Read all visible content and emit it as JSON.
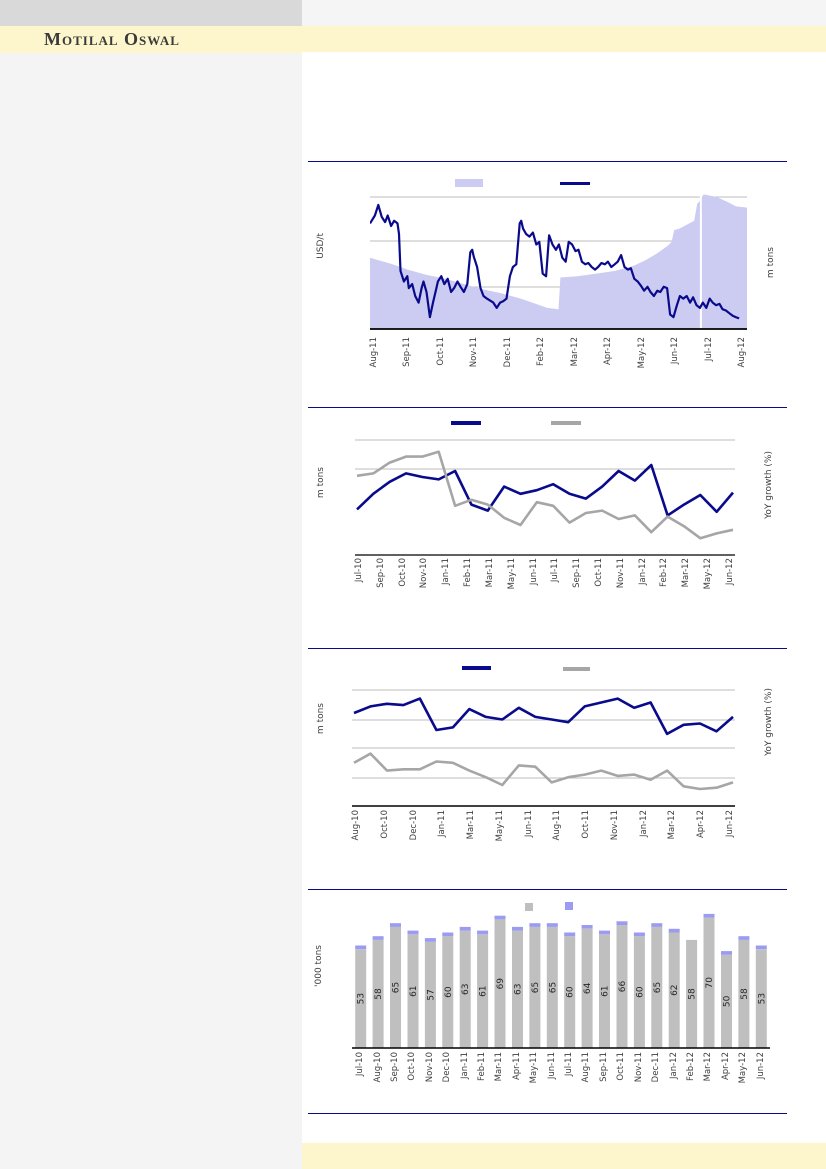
{
  "page": {
    "brand": "Motilal Oswal",
    "colors": {
      "brand_band": "#fdf6cd",
      "header_block": "#d9d9d9",
      "left_column_bg": "#f4f4f5",
      "navy": "#0a0a8c",
      "lavender_area": "#ccccf2",
      "periwinkle_cap": "#9b9bf2",
      "bar_gray": "#bfbfbf",
      "line_gray": "#a6a6a6",
      "gridline": "#bdbdbd"
    }
  },
  "chart_data": [
    {
      "type": "area",
      "subtype": "price-line-over-volume-area",
      "title": "",
      "axis_titles": {
        "left": "USD/t",
        "right": "m tons"
      },
      "y_tick_labels_visible": false,
      "note": "No numeric axis tick labels are visible; series values are normalized 0-1 of plot height read from pixels.",
      "legend": [
        {
          "label": "",
          "shape": "bar",
          "color": "#ccccf2"
        },
        {
          "label": "",
          "shape": "line",
          "color": "#0a0a8c"
        }
      ],
      "x_tick_labels": [
        "Aug-11",
        "Sep-11",
        "Oct-11",
        "Nov-11",
        "Dec-11",
        "Feb-12",
        "Mar-12",
        "Apr-12",
        "May-12",
        "Jun-12",
        "Jul-12",
        "Aug-12"
      ],
      "area_points_norm": [
        [
          0,
          0.54
        ],
        [
          0.06,
          0.49
        ],
        [
          0.1,
          0.45
        ],
        [
          0.15,
          0.41
        ],
        [
          0.2,
          0.38
        ],
        [
          0.25,
          0.34
        ],
        [
          0.3,
          0.3
        ],
        [
          0.35,
          0.27
        ],
        [
          0.4,
          0.23
        ],
        [
          0.44,
          0.19
        ],
        [
          0.47,
          0.16
        ],
        [
          0.5,
          0.15
        ],
        [
          0.505,
          0.39
        ],
        [
          0.55,
          0.4
        ],
        [
          0.6,
          0.42
        ],
        [
          0.65,
          0.44
        ],
        [
          0.7,
          0.48
        ],
        [
          0.73,
          0.52
        ],
        [
          0.76,
          0.57
        ],
        [
          0.79,
          0.63
        ],
        [
          0.8,
          0.66
        ],
        [
          0.807,
          0.75
        ],
        [
          0.82,
          0.76
        ],
        [
          0.84,
          0.79
        ],
        [
          0.86,
          0.82
        ],
        [
          0.868,
          0.95
        ],
        [
          0.875,
          0.97
        ],
        [
          0.885,
          1.02
        ],
        [
          0.92,
          1.0
        ],
        [
          0.95,
          0.96
        ],
        [
          0.97,
          0.93
        ],
        [
          1.0,
          0.92
        ]
      ],
      "white_gap_x_norm": 0.875,
      "line_points_norm": [
        [
          0,
          0.8
        ],
        [
          0.013,
          0.86
        ],
        [
          0.022,
          0.94
        ],
        [
          0.031,
          0.85
        ],
        [
          0.04,
          0.81
        ],
        [
          0.047,
          0.86
        ],
        [
          0.056,
          0.78
        ],
        [
          0.064,
          0.82
        ],
        [
          0.073,
          0.8
        ],
        [
          0.077,
          0.72
        ],
        [
          0.081,
          0.44
        ],
        [
          0.09,
          0.36
        ],
        [
          0.099,
          0.4
        ],
        [
          0.103,
          0.31
        ],
        [
          0.112,
          0.34
        ],
        [
          0.12,
          0.25
        ],
        [
          0.129,
          0.2
        ],
        [
          0.137,
          0.31
        ],
        [
          0.142,
          0.36
        ],
        [
          0.15,
          0.28
        ],
        [
          0.159,
          0.09
        ],
        [
          0.167,
          0.2
        ],
        [
          0.176,
          0.31
        ],
        [
          0.18,
          0.36
        ],
        [
          0.189,
          0.4
        ],
        [
          0.197,
          0.34
        ],
        [
          0.206,
          0.38
        ],
        [
          0.215,
          0.28
        ],
        [
          0.223,
          0.31
        ],
        [
          0.232,
          0.36
        ],
        [
          0.24,
          0.32
        ],
        [
          0.249,
          0.28
        ],
        [
          0.258,
          0.34
        ],
        [
          0.266,
          0.58
        ],
        [
          0.271,
          0.6
        ],
        [
          0.275,
          0.55
        ],
        [
          0.284,
          0.47
        ],
        [
          0.293,
          0.31
        ],
        [
          0.301,
          0.25
        ],
        [
          0.31,
          0.23
        ],
        [
          0.327,
          0.2
        ],
        [
          0.336,
          0.16
        ],
        [
          0.345,
          0.2
        ],
        [
          0.353,
          0.21
        ],
        [
          0.362,
          0.23
        ],
        [
          0.371,
          0.4
        ],
        [
          0.379,
          0.47
        ],
        [
          0.388,
          0.49
        ],
        [
          0.397,
          0.8
        ],
        [
          0.401,
          0.82
        ],
        [
          0.406,
          0.76
        ],
        [
          0.414,
          0.72
        ],
        [
          0.423,
          0.7
        ],
        [
          0.432,
          0.73
        ],
        [
          0.441,
          0.64
        ],
        [
          0.449,
          0.66
        ],
        [
          0.458,
          0.42
        ],
        [
          0.467,
          0.4
        ],
        [
          0.475,
          0.71
        ],
        [
          0.484,
          0.64
        ],
        [
          0.493,
          0.6
        ],
        [
          0.501,
          0.64
        ],
        [
          0.51,
          0.54
        ],
        [
          0.519,
          0.51
        ],
        [
          0.527,
          0.66
        ],
        [
          0.536,
          0.64
        ],
        [
          0.545,
          0.59
        ],
        [
          0.553,
          0.6
        ],
        [
          0.562,
          0.51
        ],
        [
          0.571,
          0.49
        ],
        [
          0.579,
          0.5
        ],
        [
          0.588,
          0.47
        ],
        [
          0.597,
          0.45
        ],
        [
          0.605,
          0.47
        ],
        [
          0.614,
          0.5
        ],
        [
          0.623,
          0.49
        ],
        [
          0.631,
          0.51
        ],
        [
          0.64,
          0.47
        ],
        [
          0.649,
          0.49
        ],
        [
          0.657,
          0.51
        ],
        [
          0.666,
          0.56
        ],
        [
          0.675,
          0.47
        ],
        [
          0.684,
          0.45
        ],
        [
          0.692,
          0.46
        ],
        [
          0.701,
          0.38
        ],
        [
          0.71,
          0.36
        ],
        [
          0.718,
          0.33
        ],
        [
          0.727,
          0.29
        ],
        [
          0.736,
          0.32
        ],
        [
          0.744,
          0.28
        ],
        [
          0.753,
          0.25
        ],
        [
          0.762,
          0.29
        ],
        [
          0.77,
          0.28
        ],
        [
          0.779,
          0.32
        ],
        [
          0.788,
          0.31
        ],
        [
          0.796,
          0.11
        ],
        [
          0.805,
          0.09
        ],
        [
          0.814,
          0.18
        ],
        [
          0.822,
          0.25
        ],
        [
          0.831,
          0.23
        ],
        [
          0.84,
          0.25
        ],
        [
          0.849,
          0.2
        ],
        [
          0.857,
          0.24
        ],
        [
          0.866,
          0.18
        ],
        [
          0.875,
          0.16
        ],
        [
          0.883,
          0.2
        ],
        [
          0.892,
          0.16
        ],
        [
          0.901,
          0.23
        ],
        [
          0.909,
          0.2
        ],
        [
          0.918,
          0.18
        ],
        [
          0.927,
          0.19
        ],
        [
          0.935,
          0.15
        ],
        [
          0.944,
          0.14
        ],
        [
          0.953,
          0.12
        ],
        [
          0.962,
          0.1
        ],
        [
          0.97,
          0.09
        ],
        [
          0.979,
          0.08
        ]
      ]
    },
    {
      "type": "line",
      "title": "",
      "axis_titles": {
        "left": "m tons",
        "right": "YoY growth (%)"
      },
      "y_tick_labels_visible": false,
      "legend": [
        {
          "label": "",
          "shape": "line",
          "color": "#0a0a8c"
        },
        {
          "label": "",
          "shape": "line",
          "color": "#a6a6a6"
        }
      ],
      "x_tick_labels": [
        "Jul-10",
        "Sep-10",
        "Oct-10",
        "Nov-10",
        "Jan-11",
        "Feb-11",
        "Mar-11",
        "May-11",
        "Jun-11",
        "Jul-11",
        "Sep-11",
        "Oct-11",
        "Nov-11",
        "Jan-12",
        "Feb-12",
        "Mar-12",
        "May-12",
        "Jun-12"
      ],
      "series": [
        {
          "name": "navy",
          "color": "#0a0a8c",
          "values_norm": [
            0.38,
            0.51,
            0.61,
            0.68,
            0.65,
            0.63,
            0.7,
            0.42,
            0.37,
            0.57,
            0.51,
            0.54,
            0.59,
            0.51,
            0.47,
            0.57,
            0.7,
            0.62,
            0.75,
            0.33,
            0.42,
            0.5,
            0.36,
            0.52
          ]
        },
        {
          "name": "gray",
          "color": "#a6a6a6",
          "values_norm": [
            0.66,
            0.68,
            0.77,
            0.82,
            0.82,
            0.86,
            0.41,
            0.46,
            0.42,
            0.31,
            0.25,
            0.44,
            0.41,
            0.27,
            0.35,
            0.37,
            0.3,
            0.33,
            0.19,
            0.32,
            0.24,
            0.14,
            0.18,
            0.21
          ]
        }
      ]
    },
    {
      "type": "line",
      "title": "",
      "axis_titles": {
        "left": "m tons",
        "right": "YoY growth (%)"
      },
      "y_tick_labels_visible": false,
      "legend": [
        {
          "label": "",
          "shape": "line",
          "color": "#0a0a8c"
        },
        {
          "label": "",
          "shape": "line",
          "color": "#a6a6a6"
        }
      ],
      "x_tick_labels": [
        "Aug-10",
        "Oct-10",
        "Dec-10",
        "Jan-11",
        "Mar-11",
        "May-11",
        "Jun-11",
        "Aug-11",
        "Oct-11",
        "Nov-11",
        "Jan-12",
        "Mar-12",
        "Apr-12",
        "Jun-12"
      ],
      "series": [
        {
          "name": "navy",
          "color": "#0a0a8c",
          "values_norm": [
            0.71,
            0.76,
            0.78,
            0.77,
            0.82,
            0.58,
            0.6,
            0.74,
            0.68,
            0.66,
            0.75,
            0.68,
            0.66,
            0.64,
            0.76,
            0.79,
            0.82,
            0.75,
            0.79,
            0.55,
            0.62,
            0.63,
            0.57,
            0.68
          ]
        },
        {
          "name": "gray",
          "color": "#a6a6a6",
          "values_norm": [
            0.33,
            0.4,
            0.27,
            0.28,
            0.28,
            0.34,
            0.33,
            0.27,
            0.22,
            0.16,
            0.31,
            0.3,
            0.18,
            0.22,
            0.24,
            0.27,
            0.23,
            0.24,
            0.2,
            0.27,
            0.15,
            0.13,
            0.14,
            0.18
          ]
        }
      ]
    },
    {
      "type": "bar",
      "subtype": "stacked",
      "title": "",
      "axis_titles": {
        "left": "'000 tons",
        "right": ""
      },
      "y_tick_labels_visible": false,
      "legend": [
        {
          "label": "",
          "shape": "square",
          "color": "#bfbfbf"
        },
        {
          "label": "",
          "shape": "square",
          "color": "#9b9bf2"
        }
      ],
      "x_tick_labels": [
        "Jul-10",
        "Aug-10",
        "Sep-10",
        "Oct-10",
        "Nov-10",
        "Dec-10",
        "Jan-11",
        "Feb-11",
        "Mar-11",
        "Apr-11",
        "May-11",
        "Jun-11",
        "Jul-11",
        "Aug-11",
        "Sep-11",
        "Oct-11",
        "Nov-11",
        "Dec-11",
        "Jan-12",
        "Feb-12",
        "Mar-12",
        "Apr-12",
        "May-12",
        "Jun-12"
      ],
      "series": [
        {
          "name": "base",
          "color": "#bfbfbf",
          "values": [
            53,
            58,
            65,
            61,
            57,
            60,
            63,
            61,
            69,
            63,
            65,
            65,
            60,
            64,
            61,
            66,
            60,
            65,
            62,
            58,
            70,
            50,
            58,
            53
          ]
        },
        {
          "name": "cap",
          "color": "#9b9bf2",
          "values": [
            2,
            2,
            2,
            2,
            2,
            2,
            2,
            2,
            2,
            2,
            2,
            2,
            2,
            2,
            2,
            2,
            2,
            2,
            2,
            0,
            2,
            2,
            2,
            2
          ]
        }
      ],
      "bar_value_labels": [
        "53",
        "58",
        "65",
        "61",
        "57",
        "60",
        "63",
        "61",
        "69",
        "63",
        "65",
        "65",
        "60",
        "64",
        "61",
        "66",
        "60",
        "65",
        "62",
        "58",
        "70",
        "50",
        "58",
        "53"
      ]
    }
  ]
}
